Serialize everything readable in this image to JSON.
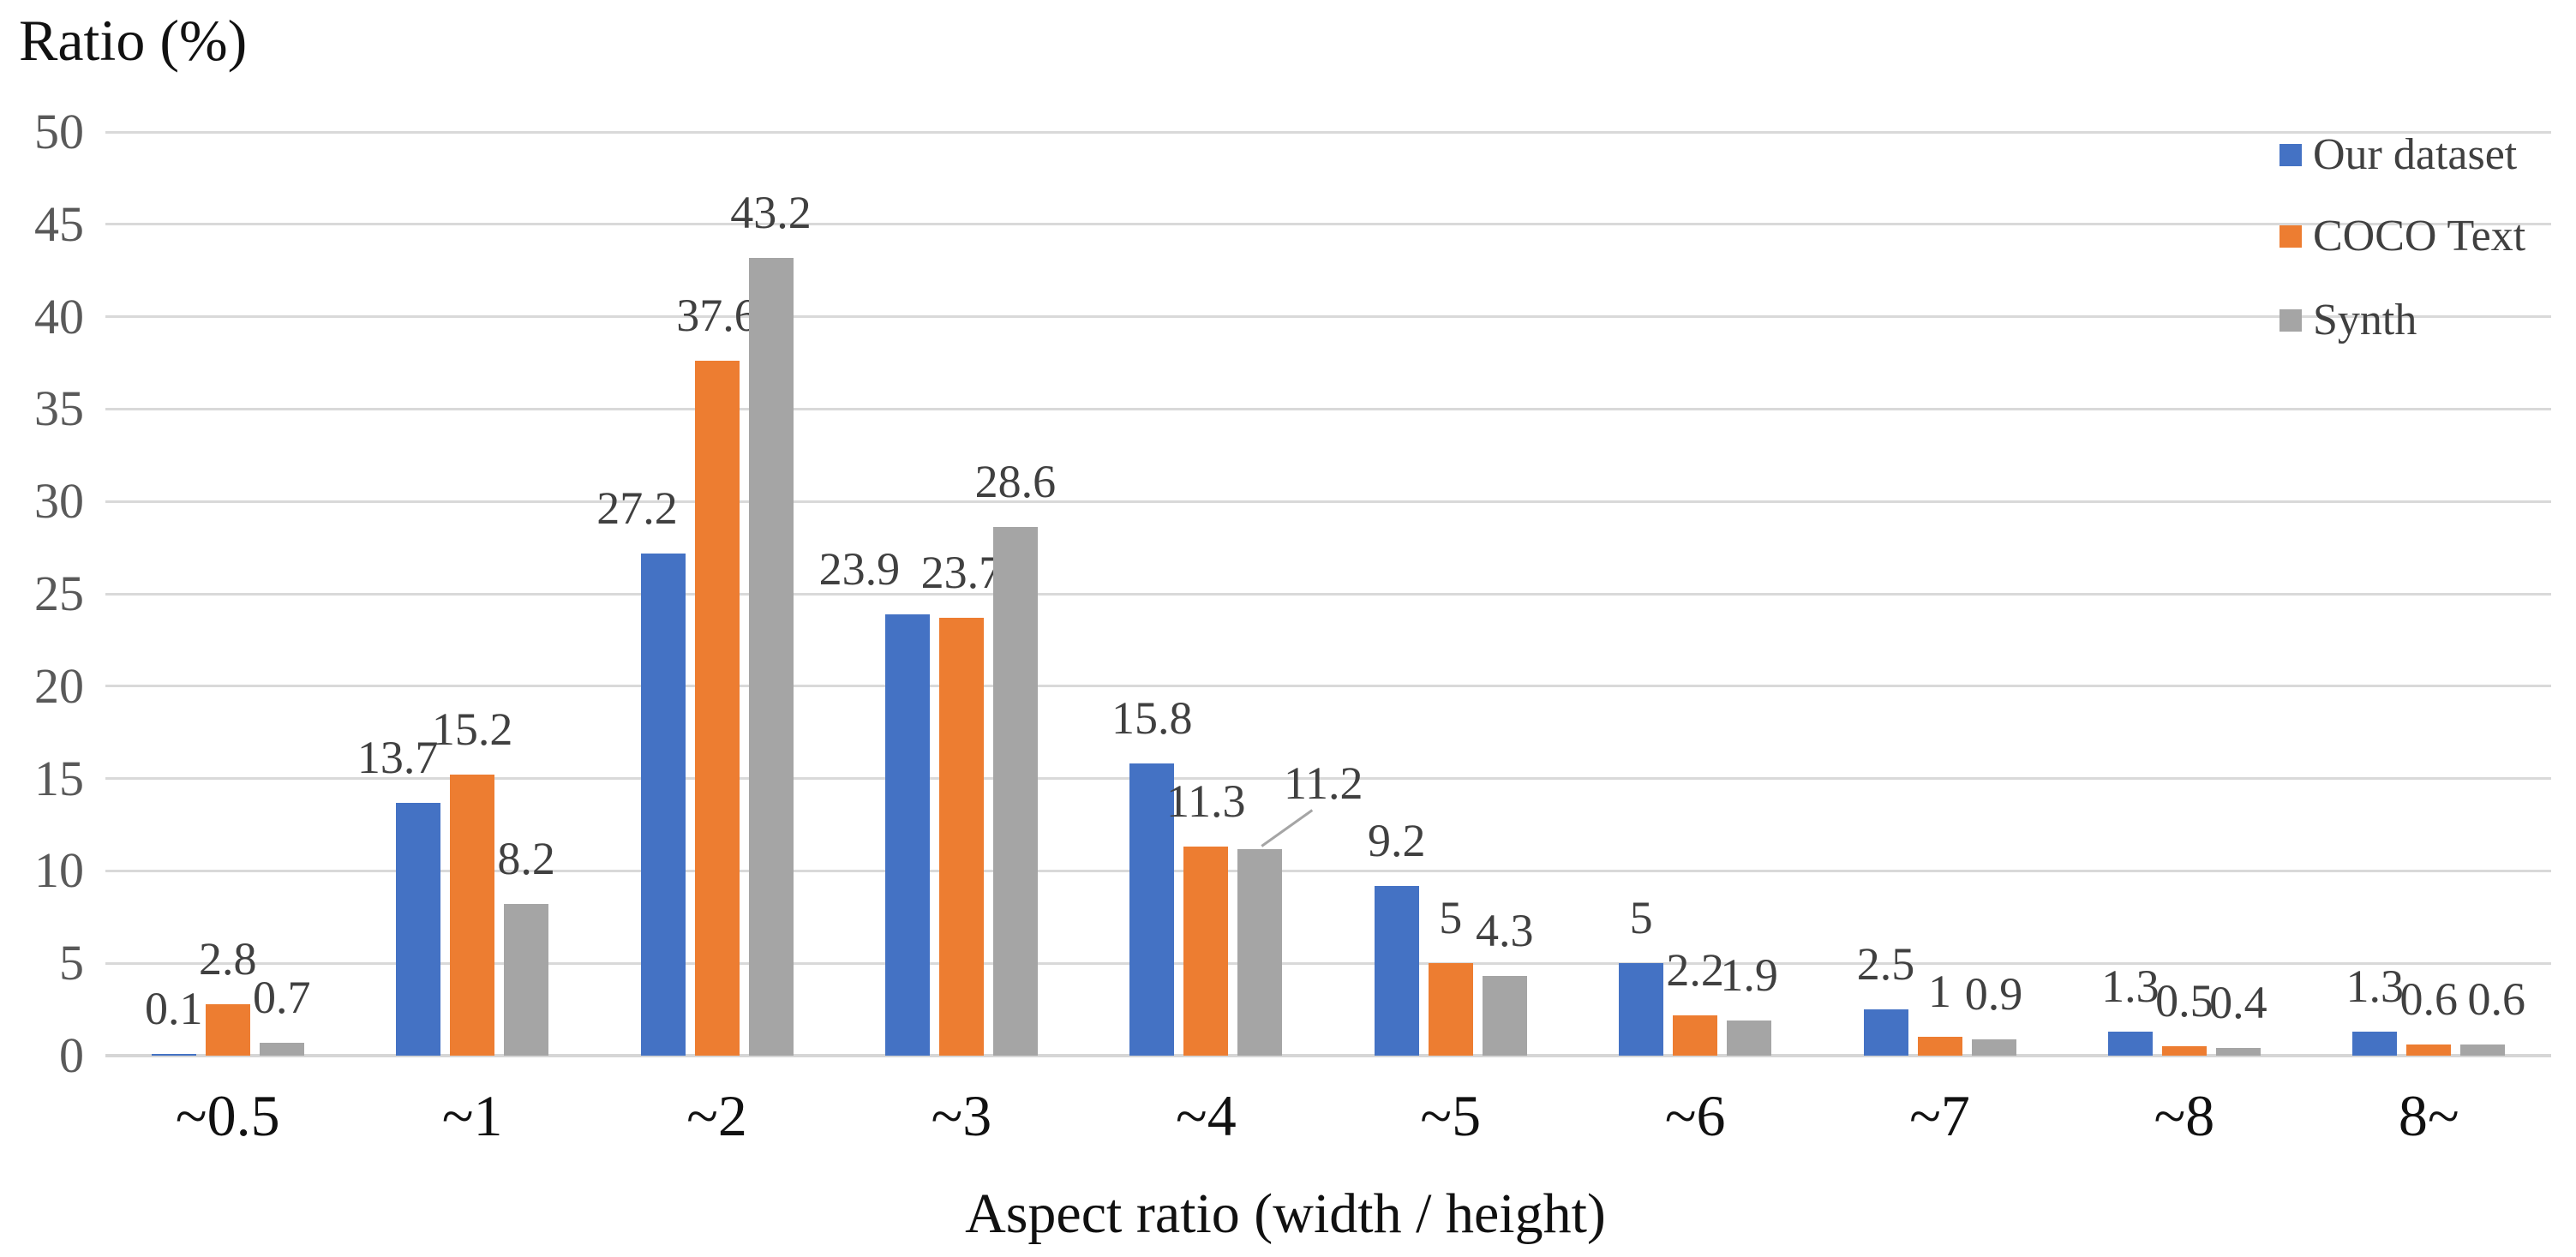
{
  "title": "Ratio (%)",
  "x_axis_title": "Aspect ratio (width / height)",
  "legend": {
    "position": "top-right",
    "items": [
      {
        "label": "Our dataset",
        "color": "#4472C4"
      },
      {
        "label": "COCO Text",
        "color": "#ED7D31"
      },
      {
        "label": "Synth",
        "color": "#A5A5A5"
      }
    ]
  },
  "chart_data": {
    "type": "bar",
    "title": "Ratio (%)",
    "xlabel": "Aspect ratio (width / height)",
    "ylabel": "Ratio (%)",
    "categories": [
      "~0.5",
      "~1",
      "~2",
      "~3",
      "~4",
      "~5",
      "~6",
      "~7",
      "~8",
      "8~"
    ],
    "series": [
      {
        "name": "Our dataset",
        "color": "#4472C4",
        "values": [
          0.1,
          13.7,
          27.2,
          23.9,
          15.8,
          9.2,
          5,
          2.5,
          1.3,
          1.3
        ]
      },
      {
        "name": "COCO Text",
        "color": "#ED7D31",
        "values": [
          2.8,
          15.2,
          37.6,
          23.7,
          11.3,
          5,
          2.2,
          1,
          0.5,
          0.6
        ]
      },
      {
        "name": "Synth",
        "color": "#A5A5A5",
        "values": [
          0.7,
          8.2,
          43.2,
          28.6,
          11.2,
          4.3,
          1.9,
          0.9,
          0.4,
          0.6
        ]
      }
    ],
    "y_ticks": [
      0,
      5,
      10,
      15,
      20,
      25,
      30,
      35,
      40,
      45,
      50
    ],
    "ylim": [
      0,
      50
    ],
    "grid": true,
    "data_labels": true,
    "legend_position": "top-right",
    "annotations": [
      {
        "target_category": "~4",
        "target_series": "Synth",
        "label": "11.2",
        "leader_line": true
      }
    ]
  },
  "colors": {
    "grid": "#D9D9D9",
    "data_label": "#404040",
    "tick_label": "#595959",
    "category_label": "#111111",
    "leader_line": "#A5A5A5",
    "background": "#FFFFFF"
  }
}
